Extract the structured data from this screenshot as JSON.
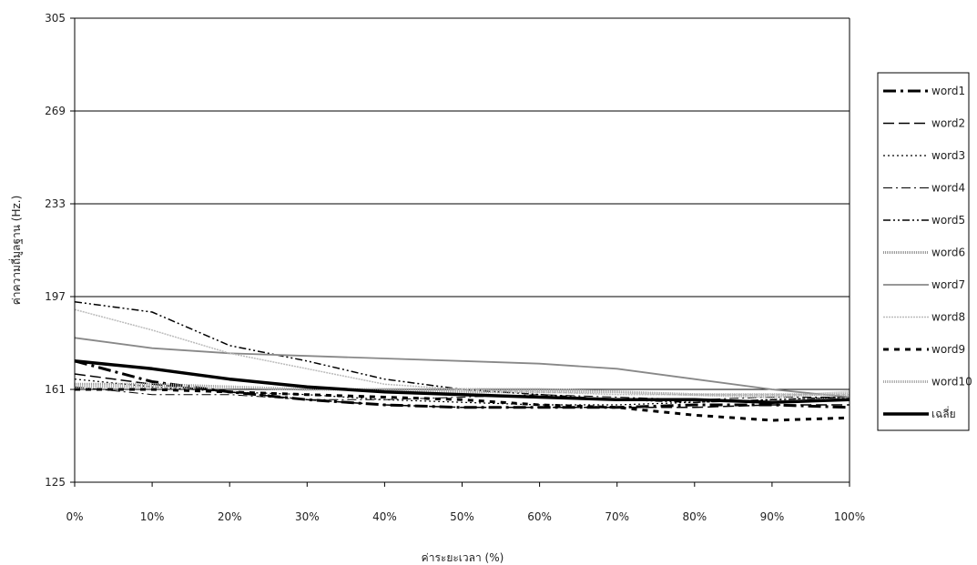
{
  "chart_data": {
    "type": "line",
    "title": "",
    "xlabel": "ค่าระยะเวลา (%)",
    "ylabel": "ค่าความถี่มูลฐาน (Hz.)",
    "categories": [
      "0%",
      "10%",
      "20%",
      "30%",
      "40%",
      "50%",
      "60%",
      "70%",
      "80%",
      "90%",
      "100%"
    ],
    "yticks": [
      "125",
      "161",
      "197",
      "233",
      "269",
      "305"
    ],
    "ylim": [
      125,
      305
    ],
    "grid": "horizontal",
    "legend_position": "right",
    "series": [
      {
        "name": "word1",
        "color": "#000000",
        "dash": "14,5,3,5",
        "width": 3,
        "values": [
          172,
          164,
          160,
          157,
          155,
          154,
          154,
          154,
          155,
          155,
          154
        ]
      },
      {
        "name": "word2",
        "color": "#000000",
        "dash": "12,5",
        "width": 1.5,
        "values": [
          167,
          163,
          160,
          157,
          155,
          154,
          154,
          154,
          154,
          155,
          155
        ]
      },
      {
        "name": "word3",
        "color": "#000000",
        "dash": "2,3",
        "width": 1.2,
        "values": [
          165,
          162,
          160,
          159,
          157,
          156,
          155,
          155,
          156,
          157,
          158
        ]
      },
      {
        "name": "word4",
        "color": "#000000",
        "dash": "10,4,2,4",
        "width": 1,
        "values": [
          162,
          159,
          159,
          157,
          157,
          158,
          159,
          158,
          157,
          158,
          158
        ]
      },
      {
        "name": "word5",
        "color": "#000000",
        "dash": "8,3,2,3,2,3",
        "width": 1.5,
        "values": [
          195,
          191,
          178,
          172,
          165,
          161,
          159,
          157,
          156,
          157,
          158
        ]
      },
      {
        "name": "word6",
        "color": "#999999",
        "dash": "1,1",
        "width": 3,
        "values": [
          163,
          163,
          162,
          161,
          161,
          160,
          160,
          160,
          159,
          159,
          159
        ]
      },
      {
        "name": "word7",
        "color": "#888888",
        "dash": "",
        "width": 1.8,
        "values": [
          181,
          177,
          175,
          174,
          173,
          172,
          171,
          169,
          165,
          161,
          158
        ]
      },
      {
        "name": "word8",
        "color": "#bbbbbb",
        "dash": "2,1",
        "width": 1.5,
        "values": [
          192,
          184,
          175,
          169,
          163,
          161,
          160,
          159,
          159,
          159,
          159
        ]
      },
      {
        "name": "word9",
        "color": "#000000",
        "dash": "6,6",
        "width": 3,
        "values": [
          161,
          161,
          160,
          159,
          158,
          157,
          155,
          154,
          151,
          149,
          150
        ]
      },
      {
        "name": "word10",
        "color": "#aaaaaa",
        "dash": "1,1",
        "width": 3,
        "values": [
          162,
          162,
          162,
          161,
          161,
          161,
          161,
          160,
          159,
          158,
          160
        ]
      },
      {
        "name": "เฉลี่ย",
        "color": "#000000",
        "dash": "",
        "width": 3.5,
        "values": [
          172,
          169,
          165,
          162,
          160,
          159,
          158,
          157,
          157,
          156,
          157
        ]
      }
    ]
  }
}
